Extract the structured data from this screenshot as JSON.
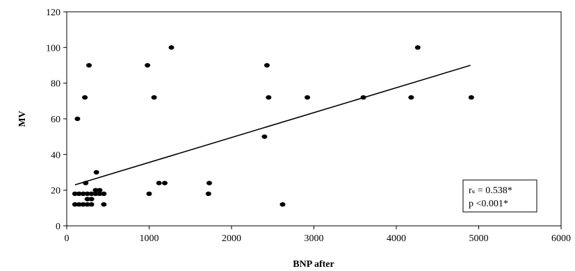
{
  "chart_data": {
    "type": "scatter",
    "title": "",
    "xlabel": "BNP after",
    "ylabel": "MV",
    "xlim": [
      0,
      6000
    ],
    "ylim": [
      0,
      120
    ],
    "xticks": [
      0,
      1000,
      2000,
      3000,
      4000,
      5000,
      6000
    ],
    "yticks": [
      0,
      20,
      40,
      60,
      80,
      100,
      120
    ],
    "xtick_labels": [
      "0",
      "1000",
      "2000",
      "3000",
      "4000",
      "5000",
      "6000"
    ],
    "ytick_labels": [
      "0",
      "20",
      "40",
      "60",
      "80",
      "100",
      "120"
    ],
    "grid": false,
    "legend": "none",
    "series": [
      {
        "points": [
          {
            "x": 100,
            "y": 12
          },
          {
            "x": 150,
            "y": 12
          },
          {
            "x": 200,
            "y": 12
          },
          {
            "x": 250,
            "y": 12
          },
          {
            "x": 300,
            "y": 12
          },
          {
            "x": 450,
            "y": 12
          },
          {
            "x": 100,
            "y": 18
          },
          {
            "x": 150,
            "y": 18
          },
          {
            "x": 200,
            "y": 18
          },
          {
            "x": 250,
            "y": 18
          },
          {
            "x": 300,
            "y": 18
          },
          {
            "x": 350,
            "y": 18
          },
          {
            "x": 400,
            "y": 18
          },
          {
            "x": 450,
            "y": 18
          },
          {
            "x": 250,
            "y": 15
          },
          {
            "x": 300,
            "y": 15
          },
          {
            "x": 350,
            "y": 20
          },
          {
            "x": 400,
            "y": 20
          },
          {
            "x": 230,
            "y": 24
          },
          {
            "x": 360,
            "y": 30
          },
          {
            "x": 130,
            "y": 60
          },
          {
            "x": 220,
            "y": 72
          },
          {
            "x": 270,
            "y": 90
          },
          {
            "x": 980,
            "y": 90
          },
          {
            "x": 1000,
            "y": 18
          },
          {
            "x": 1060,
            "y": 72
          },
          {
            "x": 1120,
            "y": 24
          },
          {
            "x": 1190,
            "y": 24
          },
          {
            "x": 1270,
            "y": 100
          },
          {
            "x": 1720,
            "y": 18
          },
          {
            "x": 1730,
            "y": 24
          },
          {
            "x": 2400,
            "y": 50
          },
          {
            "x": 2430,
            "y": 90
          },
          {
            "x": 2450,
            "y": 72
          },
          {
            "x": 2620,
            "y": 12
          },
          {
            "x": 2920,
            "y": 72
          },
          {
            "x": 3600,
            "y": 72
          },
          {
            "x": 4180,
            "y": 72
          },
          {
            "x": 4260,
            "y": 100
          },
          {
            "x": 4910,
            "y": 72
          }
        ],
        "color": "#000000"
      }
    ],
    "trendline": {
      "x": [
        100,
        4900
      ],
      "y": [
        23,
        90
      ]
    },
    "annotation": {
      "line1": "rₛ = 0.538*",
      "line2": "p <0.001*"
    }
  }
}
